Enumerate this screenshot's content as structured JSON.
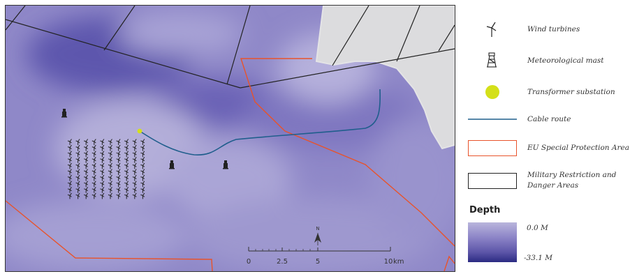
{
  "legend": {
    "items": [
      {
        "label": "Wind turbines",
        "icon": "wind-turbine-icon"
      },
      {
        "label": "Meteorological mast",
        "icon": "met-mast-icon"
      },
      {
        "label": "Transformer substation",
        "icon": "substation-dot-icon",
        "color": "#d4e019"
      },
      {
        "label": "Cable route",
        "icon": "cable-line-icon",
        "color": "#1f5e8c"
      },
      {
        "label": "EU Special Protection Area",
        "icon": "outline-box-icon",
        "color": "#e8532b"
      },
      {
        "label": "Military Restriction and Danger Areas",
        "icon": "outline-box-icon",
        "color": "#222222"
      }
    ],
    "depth": {
      "title": "Depth",
      "max_label": "0.0 M",
      "min_label": "-33.1 M",
      "colors": [
        "#b9b5dc",
        "#2b2a82"
      ]
    }
  },
  "map": {
    "colors": {
      "water": "#8f88c8",
      "land": "#dcdcde",
      "protection_area": "#e8532b",
      "military": "#222222",
      "cable": "#1f5e8c",
      "substation": "#d4e019"
    },
    "north_label": "N",
    "scale_bar": {
      "ticks": [
        "0",
        "2.5",
        "5",
        "10"
      ],
      "unit": "km"
    }
  }
}
